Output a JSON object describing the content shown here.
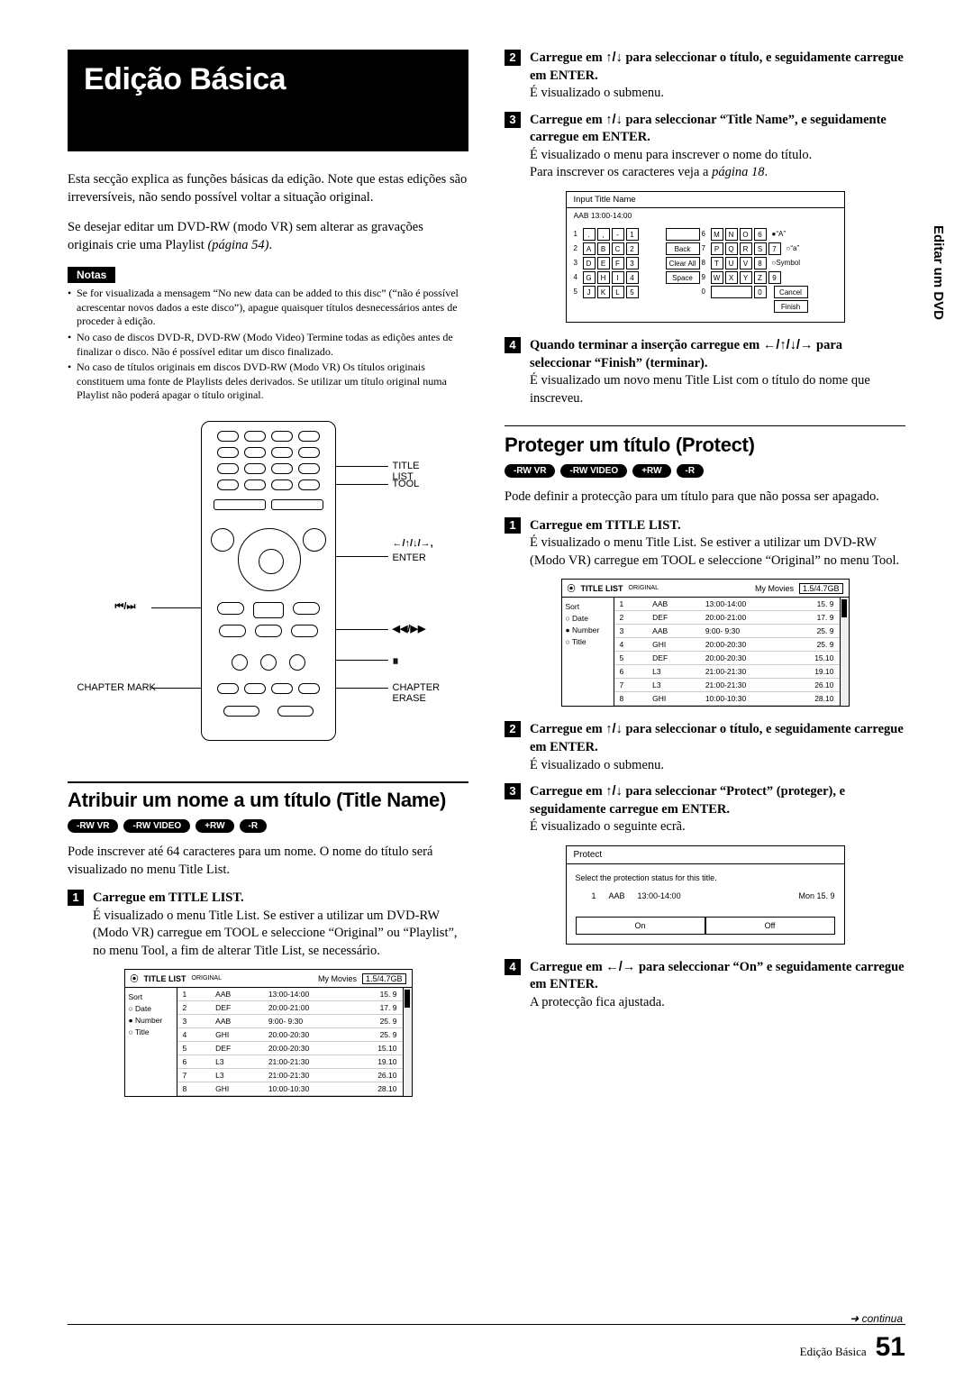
{
  "page": {
    "title": "Edição Básica",
    "side_tab": "Editar um DVD",
    "continua": "continua",
    "footer_label": "Edição Básica",
    "page_number": "51"
  },
  "intro": {
    "p1": "Esta secção explica as funções básicas da edição. Note que estas edições são irreversíveis, não sendo possível voltar a situação original.",
    "p2a": "Se desejar editar um DVD-RW (modo VR) sem alterar as grava­ções originais crie uma Playlist ",
    "p2b": "(página 54)",
    "p2c": "."
  },
  "notas": {
    "label": "Notas",
    "n1": "Se for visualizada a mensagem “No new data can be added to this disc” (“não é possível acrescentar novos dados a este disco”), apague quaisquer títulos desnecessários antes de proceder à edição.",
    "n2": "No caso de discos DVD-R, DVD-RW (Modo Video) Termine todas as edições antes de finalizar o disco. Não é possível editar um disco finalizado.",
    "n3": "No caso de títulos originais em discos DVD-RW (Modo VR) Os títulos originais constituem uma fonte de Playlists deles derivados. Se utilizar um título original numa Playlist não poderá apagar o título original."
  },
  "remote": {
    "title_list": "TITLE LIST",
    "tool": "TOOL",
    "enter": "ENTER",
    "prev_next": "./>",
    "play": "m/M",
    "pause": "X",
    "chapter_mark": "CHAPTER MARK",
    "chapter_erase": "CHAPTER ERASE",
    "arrows": "</M/m/,,"
  },
  "badges": {
    "rwvr": "-RW VR",
    "rwvideo": "-RW VIDEO",
    "plusrw": "+RW",
    "minusr": "-R"
  },
  "section_titlename": {
    "heading": "Atribuir um nome a um título (Title Name)",
    "intro": "Pode inscrever até 64 caracteres para um nome. O nome do título será visualizado no menu Title List.",
    "step1_head": "Carregue em TITLE LIST.",
    "step1_body": "É visualizado o menu Title List. Se estiver a utilizar um DVD-RW (Modo VR) carregue em TOOL e seleccione “Original” ou “Playlist”, no menu Tool, a fim de alterar Title List, se necessário."
  },
  "title_list_screen": {
    "header_title": "TITLE LIST",
    "header_sub": "ORIGINAL",
    "header_name": "My Movies",
    "header_size": "1.5/4.7GB",
    "sort_label": "Sort",
    "sort_date": "Date",
    "sort_number": "Number",
    "sort_title": "Title",
    "rows": [
      {
        "n": "1",
        "t": "AAB",
        "d": "13:00-14:00",
        "s": "15. 9"
      },
      {
        "n": "2",
        "t": "DEF",
        "d": "20:00-21:00",
        "s": "17. 9"
      },
      {
        "n": "3",
        "t": "AAB",
        "d": "9:00- 9:30",
        "s": "25. 9"
      },
      {
        "n": "4",
        "t": "GHI",
        "d": "20:00-20:30",
        "s": "25. 9"
      },
      {
        "n": "5",
        "t": "DEF",
        "d": "20:00-20:30",
        "s": "15.10"
      },
      {
        "n": "6",
        "t": "L3",
        "d": "21:00-21:30",
        "s": "19.10"
      },
      {
        "n": "7",
        "t": "L3",
        "d": "21:00-21:30",
        "s": "26.10"
      },
      {
        "n": "8",
        "t": "GHI",
        "d": "10:00-10:30",
        "s": "28.10"
      }
    ]
  },
  "right_steps": {
    "s2_head_a": "Carregue em ",
    "s2_head_b": " para seleccionar o título, e seguidamente carregue em ENTER.",
    "s2_body": "É visualizado o submenu.",
    "s3_head_a": "Carregue em ",
    "s3_head_b": " para seleccionar “Title Name”, e seguidamente carregue em ENTER.",
    "s3_body_a": "É visualizado o menu para inscrever o nome do título.",
    "s3_body_b": "Para inscrever os caracteres veja a ",
    "s3_body_c": "página 18",
    "s3_body_d": ".",
    "s4_head_a": "Quando terminar a inserção carregue em ",
    "s4_head_b": " para seleccionar “Finish” (terminar).",
    "s4_body": "É visualizado um novo menu Title List com o título do nome que inscreveu."
  },
  "input_screen": {
    "header": "Input Title Name",
    "sub": "AAB    13:00-14:00",
    "back": "Back",
    "clear": "Clear All",
    "space": "Space",
    "cancel": "Cancel",
    "finish": "Finish",
    "A": "“A”",
    "a": "“a”",
    "sym": "Symbol"
  },
  "section_protect": {
    "heading": "Proteger um título (Protect)",
    "intro": "Pode definir a protecção para um título para que não possa ser apagado.",
    "step1_head": "Carregue em TITLE LIST.",
    "step1_body": "É visualizado o menu Title List. Se estiver a utilizar um DVD-RW (Modo VR) carregue em TOOL e seleccione “Original” no menu Tool.",
    "step2_head_a": "Carregue em ",
    "step2_head_b": " para seleccionar o título, e seguidamente carregue em ENTER.",
    "step2_body": "É visualizado o submenu.",
    "step3_head_a": "Carregue em ",
    "step3_head_b": " para seleccionar “Protect” (proteger), e seguidamente carregue em ENTER.",
    "step3_body": "É visualizado o seguinte ecrã.",
    "step4_head_a": "Carregue em ",
    "step4_head_b": " para seleccionar “On” e seguidamente carregue em ENTER.",
    "step4_body": "A protecção fica ajustada."
  },
  "protect_screen": {
    "header": "Protect",
    "desc": "Select the protection status for this title.",
    "row_n": "1",
    "row_t": "AAB",
    "row_d": "13:00-14:00",
    "row_s": "Mon 15. 9",
    "on": "On",
    "off": "Off"
  }
}
